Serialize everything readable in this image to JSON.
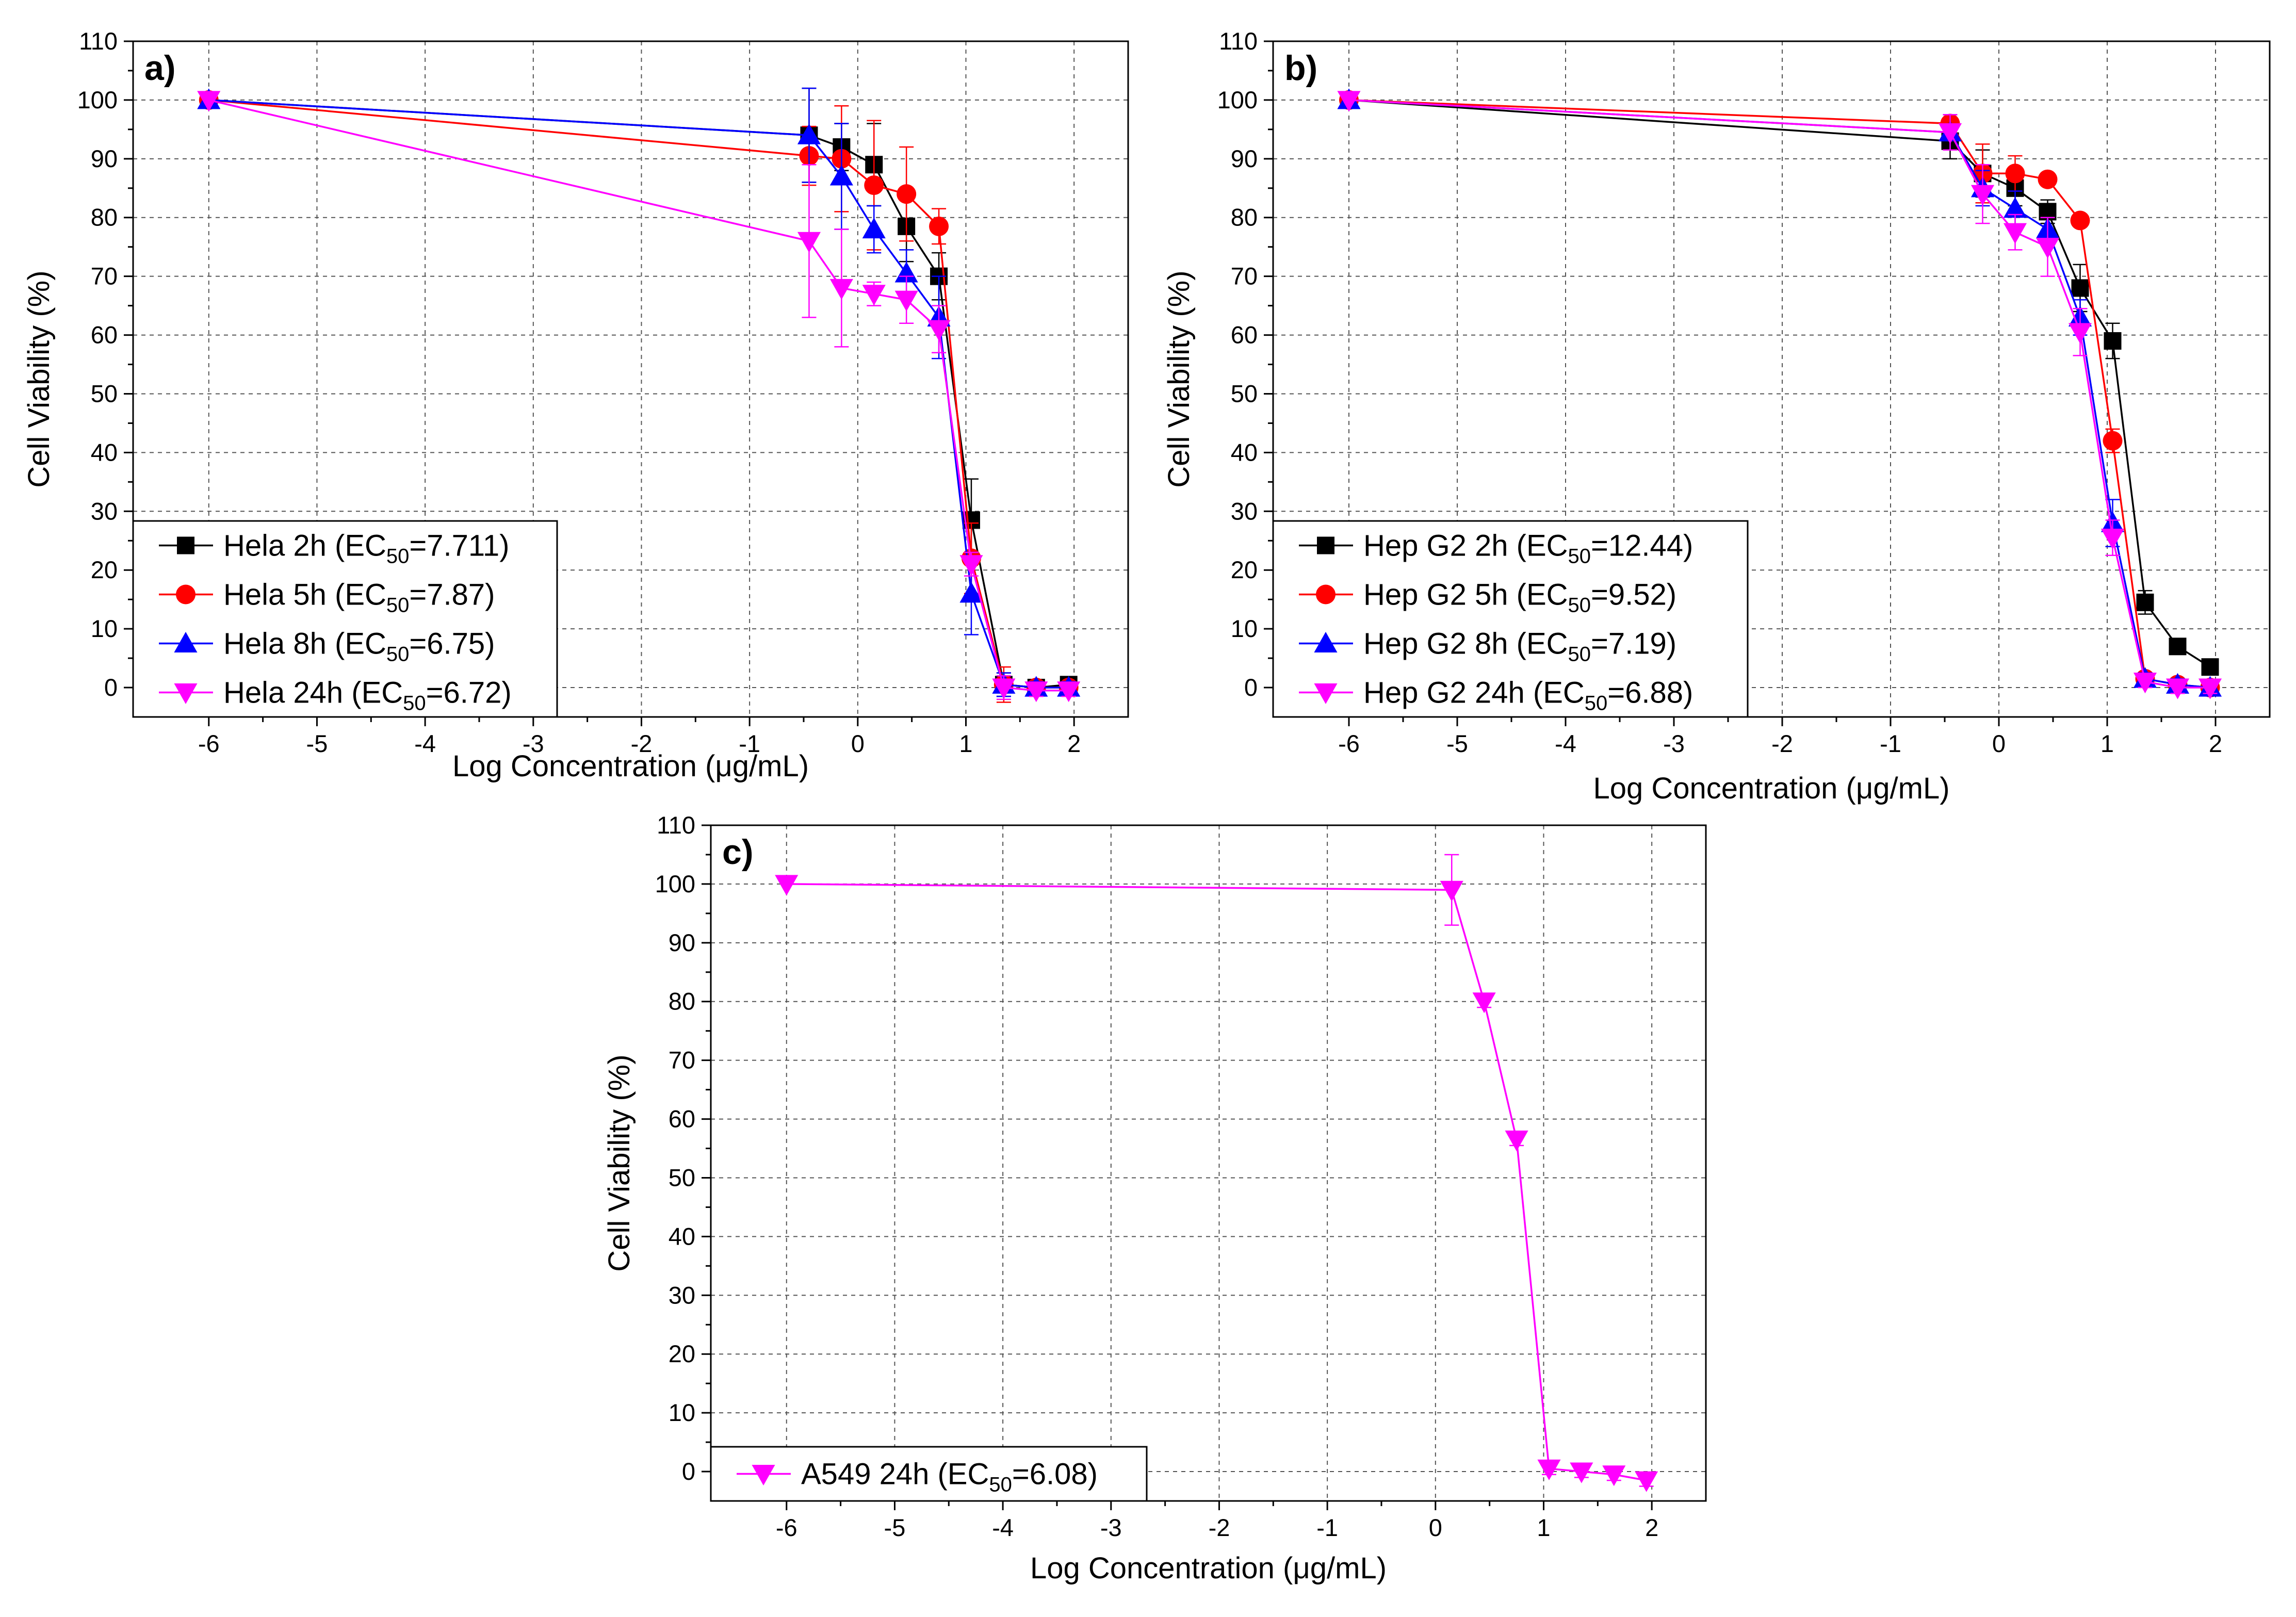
{
  "chart_data": [
    {
      "type": "line",
      "panel_label": "a)",
      "xlabel": "Log Concentration (μg/mL)",
      "ylabel": "Cell Viability (%)",
      "xlim": [
        -6.7,
        2.5
      ],
      "ylim": [
        -5,
        110
      ],
      "xticks": [
        -6,
        -5,
        -4,
        -3,
        -2,
        -1,
        0,
        1,
        2
      ],
      "yticks": [
        0,
        10,
        20,
        30,
        40,
        50,
        60,
        70,
        80,
        90,
        100,
        110
      ],
      "grid": true,
      "legend_position": "bottom-left",
      "series": [
        {
          "name": "Hela 2h",
          "label_pre": "Hela 2h (EC",
          "label_sub": "50",
          "label_post": "=7.711)",
          "color": "#000000",
          "marker": "square",
          "x": [
            -6,
            -0.45,
            -0.15,
            0.15,
            0.45,
            0.75,
            1.05,
            1.35,
            1.65,
            1.95
          ],
          "y": [
            100,
            94,
            92,
            89,
            78.5,
            70,
            28.5,
            0.5,
            0,
            0.5
          ],
          "err": [
            0,
            8,
            4,
            7,
            6,
            4,
            7,
            2,
            1,
            1
          ]
        },
        {
          "name": "Hela 5h",
          "label_pre": "Hela 5h (EC",
          "label_sub": "50",
          "label_post": "=7.87)",
          "color": "#ff0000",
          "marker": "circle",
          "x": [
            -6,
            -0.45,
            -0.15,
            0.15,
            0.45,
            0.75,
            1.05,
            1.35,
            1.65,
            1.95
          ],
          "y": [
            100,
            90.5,
            90,
            85.5,
            84,
            78.5,
            22,
            0.5,
            0,
            0
          ],
          "err": [
            0,
            5,
            9,
            11,
            8,
            3,
            6,
            3,
            1,
            1
          ]
        },
        {
          "name": "Hela 8h",
          "label_pre": "Hela 8h (EC",
          "label_sub": "50",
          "label_post": "=6.75)",
          "color": "#0000ff",
          "marker": "triangle-up",
          "x": [
            -6,
            -0.45,
            -0.15,
            0.15,
            0.45,
            0.75,
            1.05,
            1.35,
            1.65,
            1.95
          ],
          "y": [
            100,
            94,
            87,
            78,
            70.5,
            63,
            16,
            0.5,
            0,
            0
          ],
          "err": [
            0,
            8,
            9,
            4,
            4,
            7,
            7,
            2,
            1,
            1
          ]
        },
        {
          "name": "Hela 24h",
          "label_pre": "Hela 24h (EC",
          "label_sub": "50",
          "label_post": "=6.72)",
          "color": "#ff00ff",
          "marker": "triangle-down",
          "x": [
            -6,
            -0.45,
            -0.15,
            0.15,
            0.45,
            0.75,
            1.05,
            1.35,
            1.65,
            1.95
          ],
          "y": [
            100,
            76,
            68,
            67,
            66,
            61,
            21,
            0,
            -0.5,
            -0.5
          ],
          "err": [
            0,
            13,
            10,
            2,
            4,
            4,
            2,
            2,
            1,
            1
          ]
        }
      ]
    },
    {
      "type": "line",
      "panel_label": "b)",
      "xlabel": "Log Concentration (μg/mL)",
      "ylabel": "Cell Viability (%)",
      "xlim": [
        -6.7,
        2.5
      ],
      "ylim": [
        -5,
        110
      ],
      "xticks": [
        -6,
        -5,
        -4,
        -3,
        -2,
        -1,
        0,
        1,
        2
      ],
      "yticks": [
        0,
        10,
        20,
        30,
        40,
        50,
        60,
        70,
        80,
        90,
        100,
        110
      ],
      "grid": true,
      "legend_position": "bottom-left",
      "series": [
        {
          "name": "Hep G2 2h",
          "label_pre": "Hep G2 2h (EC",
          "label_sub": "50",
          "label_post": "=12.44)",
          "color": "#000000",
          "marker": "square",
          "x": [
            -6,
            -0.45,
            -0.15,
            0.15,
            0.45,
            0.75,
            1.05,
            1.35,
            1.65,
            1.95
          ],
          "y": [
            100,
            93,
            87.5,
            85,
            81,
            68,
            59,
            14.5,
            7,
            3.5
          ],
          "err": [
            0,
            3,
            4,
            3,
            2,
            4,
            3,
            2,
            1,
            1
          ]
        },
        {
          "name": "Hep G2 5h",
          "label_pre": "Hep G2 5h (EC",
          "label_sub": "50",
          "label_post": "=9.52)",
          "color": "#ff0000",
          "marker": "circle",
          "x": [
            -6,
            -0.45,
            -0.15,
            0.15,
            0.45,
            0.75,
            1.05,
            1.35,
            1.65,
            1.95
          ],
          "y": [
            100,
            96,
            87.5,
            87.5,
            86.5,
            79.5,
            42,
            1.5,
            0.5,
            0
          ],
          "err": [
            0,
            1,
            5,
            3,
            1,
            1,
            2,
            1,
            1,
            1
          ]
        },
        {
          "name": "Hep G2 8h",
          "label_pre": "Hep G2 8h (EC",
          "label_sub": "50",
          "label_post": "=7.19)",
          "color": "#0000ff",
          "marker": "triangle-up",
          "x": [
            -6,
            -0.45,
            -0.15,
            0.15,
            0.45,
            0.75,
            1.05,
            1.35,
            1.65,
            1.95
          ],
          "y": [
            100,
            94.5,
            85,
            81.5,
            78,
            63,
            28,
            1.5,
            0.5,
            0
          ],
          "err": [
            0,
            3,
            3,
            3,
            2,
            3,
            4,
            1,
            1,
            1
          ]
        },
        {
          "name": "Hep G2 24h",
          "label_pre": "Hep G2 24h (EC",
          "label_sub": "50",
          "label_post": "=6.88)",
          "color": "#ff00ff",
          "marker": "triangle-down",
          "x": [
            -6,
            -0.45,
            -0.15,
            0.15,
            0.45,
            0.75,
            1.05,
            1.35,
            1.65,
            1.95
          ],
          "y": [
            100,
            94.5,
            84,
            77.5,
            75,
            60.5,
            25.5,
            1,
            0,
            0
          ],
          "err": [
            0,
            3,
            5,
            3,
            5,
            4,
            3,
            1,
            1,
            1
          ]
        }
      ]
    },
    {
      "type": "line",
      "panel_label": "c)",
      "xlabel": "Log Concentration (μg/mL)",
      "ylabel": "Cell Viability (%)",
      "xlim": [
        -6.7,
        2.5
      ],
      "ylim": [
        -5,
        110
      ],
      "xticks": [
        -6,
        -5,
        -4,
        -3,
        -2,
        -1,
        0,
        1,
        2
      ],
      "yticks": [
        0,
        10,
        20,
        30,
        40,
        50,
        60,
        70,
        80,
        90,
        100,
        110
      ],
      "grid": true,
      "legend_position": "bottom-left",
      "series": [
        {
          "name": "A549 24h",
          "label_pre": "A549 24h (EC",
          "label_sub": "50",
          "label_post": "=6.08)",
          "color": "#ff00ff",
          "marker": "triangle-down",
          "x": [
            -6,
            0.15,
            0.45,
            0.75,
            1.05,
            1.35,
            1.65,
            1.95
          ],
          "y": [
            100,
            99,
            80,
            56.5,
            0.5,
            0,
            -0.5,
            -1.5
          ],
          "err": [
            0,
            6,
            1,
            1,
            1,
            1,
            1,
            1
          ]
        }
      ]
    }
  ]
}
